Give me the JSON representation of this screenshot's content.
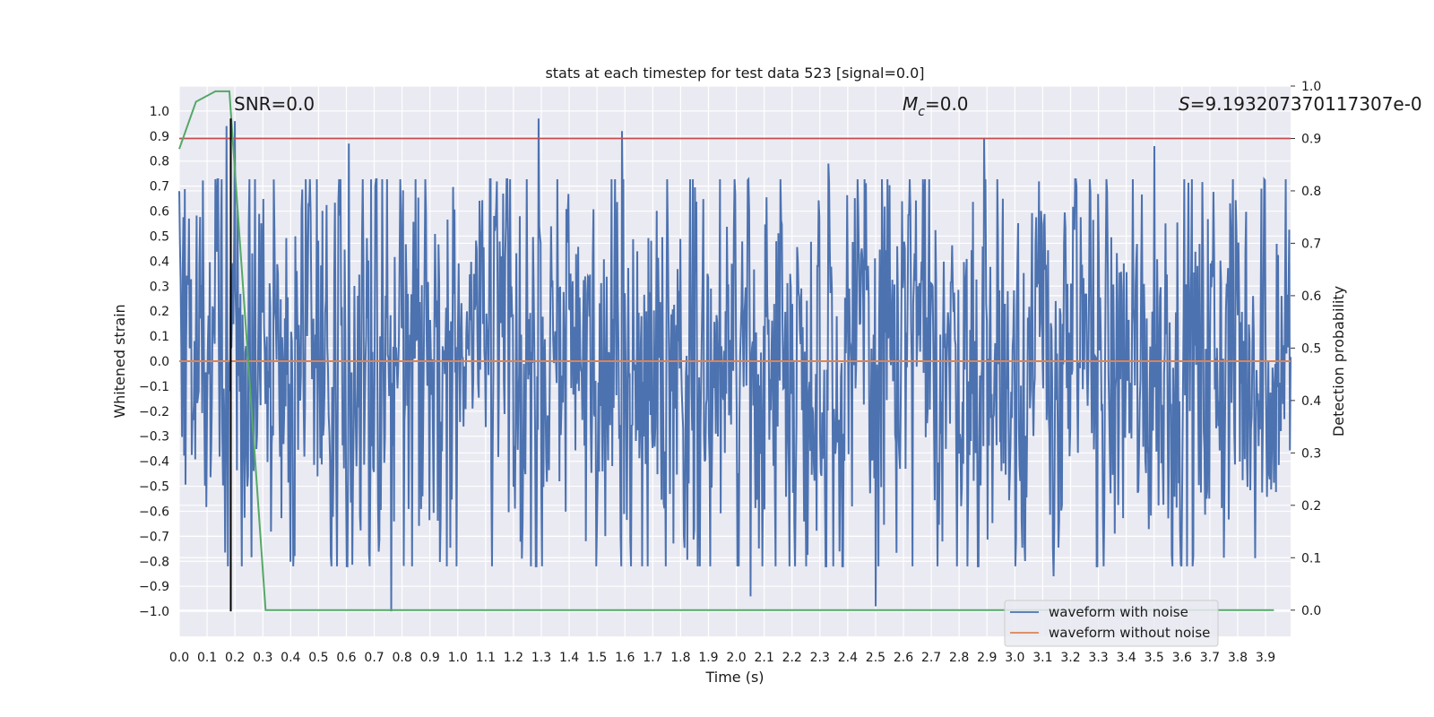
{
  "chart_data": {
    "type": "line",
    "title": "stats at each timestep for test data 523 [signal=0.0]",
    "xlabel": "Time (s)",
    "ylabel": "Whitened strain",
    "y2label": "Detection probability",
    "xlim": [
      0.0,
      3.99
    ],
    "ylim": [
      -1.1,
      1.1
    ],
    "y2lim": [
      -0.05,
      1.0
    ],
    "x_ticks": [
      0.0,
      0.1,
      0.2,
      0.3,
      0.4,
      0.5,
      0.6,
      0.7,
      0.8,
      0.9,
      1.0,
      1.1,
      1.2,
      1.3,
      1.4,
      1.5,
      1.6,
      1.7,
      1.8,
      1.9,
      2.0,
      2.1,
      2.2,
      2.3,
      2.4,
      2.5,
      2.6,
      2.7,
      2.8,
      2.9,
      3.0,
      3.1,
      3.2,
      3.3,
      3.4,
      3.5,
      3.6,
      3.7,
      3.8,
      3.9
    ],
    "x_tick_labels": [
      "0.0",
      "0.1",
      "0.2",
      "0.3",
      "0.4",
      "0.5",
      "0.6",
      "0.7",
      "0.8",
      "0.9",
      "1.0",
      "1.1",
      "1.2",
      "1.3",
      "1.4",
      "1.5",
      "1.6",
      "1.7",
      "1.8",
      "1.9",
      "2.0",
      "2.1",
      "2.2",
      "2.3",
      "2.4",
      "2.5",
      "2.6",
      "2.7",
      "2.8",
      "2.9",
      "3.0",
      "3.1",
      "3.2",
      "3.3",
      "3.4",
      "3.5",
      "3.6",
      "3.7",
      "3.8",
      "3.9"
    ],
    "y_ticks": [
      1.0,
      0.9,
      0.8,
      0.7,
      0.6,
      0.5,
      0.4,
      0.3,
      0.2,
      0.1,
      0.0,
      -0.1,
      -0.2,
      -0.3,
      -0.4,
      -0.5,
      -0.6,
      -0.7,
      -0.8,
      -0.9,
      -1.0
    ],
    "y_tick_labels": [
      "1.0",
      "0.9",
      "0.8",
      "0.7",
      "0.6",
      "0.5",
      "0.4",
      "0.3",
      "0.2",
      "0.1",
      "0.0",
      "−0.1",
      "−0.2",
      "−0.3",
      "−0.4",
      "−0.5",
      "−0.6",
      "−0.7",
      "−0.8",
      "−0.9",
      "−1.0"
    ],
    "y2_ticks": [
      1.0,
      0.9,
      0.8,
      0.7,
      0.6,
      0.5,
      0.4,
      0.3,
      0.2,
      0.1,
      0.0
    ],
    "y2_tick_labels": [
      "1.0",
      "0.9",
      "0.8",
      "0.7",
      "0.6",
      "0.5",
      "0.4",
      "0.3",
      "0.2",
      "0.1",
      "0.0"
    ],
    "grid": true,
    "legend_position": "bottom-right",
    "series": [
      {
        "name": "waveform with noise",
        "color": "#4c72b0",
        "kind": "noise",
        "sample_count": 1600,
        "approx_range": [
          -1.0,
          0.97
        ],
        "peaks": [
          {
            "x": 0.17,
            "y": 0.94
          },
          {
            "x": 0.2,
            "y": 0.96
          },
          {
            "x": 0.61,
            "y": 0.87
          },
          {
            "x": 1.29,
            "y": 0.97
          },
          {
            "x": 1.59,
            "y": 0.92
          },
          {
            "x": 2.33,
            "y": 0.79
          },
          {
            "x": 2.89,
            "y": 0.89
          },
          {
            "x": 3.5,
            "y": 0.86
          },
          {
            "x": 0.76,
            "y": -1.0
          },
          {
            "x": 2.5,
            "y": -0.98
          },
          {
            "x": 2.05,
            "y": -0.94
          },
          {
            "x": 3.14,
            "y": -0.86
          }
        ]
      },
      {
        "name": "waveform without noise",
        "color": "#dd8452",
        "x": [
          0.0,
          3.99
        ],
        "y": [
          0.0,
          0.0
        ]
      },
      {
        "name": "detection probability",
        "axis": "right",
        "color": "#55a868",
        "x": [
          0.0,
          0.06,
          0.13,
          0.18,
          0.31,
          0.5,
          1.0,
          2.0,
          3.0,
          3.93
        ],
        "y": [
          0.88,
          0.97,
          0.99,
          0.99,
          0.0,
          0.0,
          0.0,
          0.0,
          0.0,
          0.0
        ]
      }
    ],
    "threshold": {
      "axis": "right",
      "y": 0.9,
      "color": "#c44e52"
    },
    "marker_line": {
      "x": 0.185,
      "ymin": -1.0,
      "ymax": 0.97,
      "color": "#000000"
    },
    "annotations": [
      {
        "id": "snr",
        "text": "SNR=0.0"
      },
      {
        "id": "mc",
        "text_main": "M",
        "text_sub": "c",
        "text_rest": "=0.0"
      },
      {
        "id": "s",
        "text_main": "S",
        "text_rest": "=9.193207370117307e-0"
      }
    ]
  }
}
